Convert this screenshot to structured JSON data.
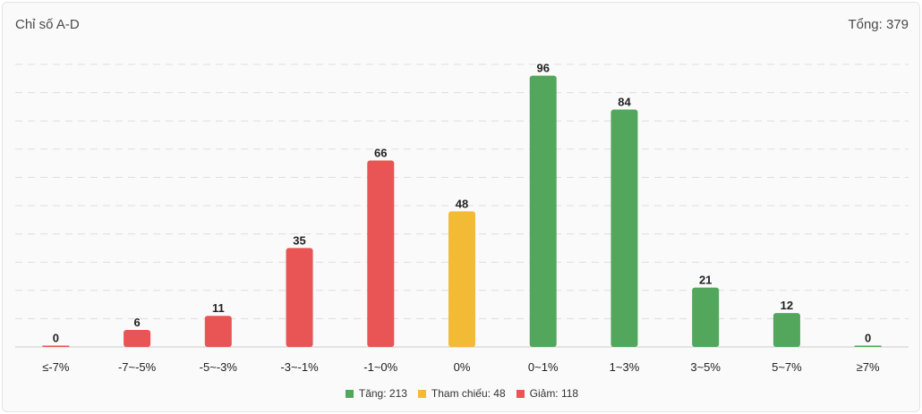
{
  "header": {
    "title": "Chỉ số A-D",
    "total": "Tổng: 379"
  },
  "colors": {
    "up": "#52a75c",
    "ref": "#f3bb35",
    "down": "#e95454",
    "grid": "#dddddd",
    "axis": "#cccccc"
  },
  "legend": [
    {
      "label": "Tăng: 213",
      "color": "#52a75c"
    },
    {
      "label": "Tham chiếu: 48",
      "color": "#f3bb35"
    },
    {
      "label": "Giảm: 118",
      "color": "#e95454"
    }
  ],
  "chart_data": {
    "type": "bar",
    "title": "Chỉ số A-D",
    "categories": [
      "≤-7%",
      "-7~-5%",
      "-5~-3%",
      "-3~-1%",
      "-1~0%",
      "0%",
      "0~1%",
      "1~3%",
      "3~5%",
      "5~7%",
      "≥7%"
    ],
    "values": [
      0,
      6,
      11,
      35,
      66,
      48,
      96,
      84,
      21,
      12,
      0
    ],
    "groups": [
      "down",
      "down",
      "down",
      "down",
      "down",
      "ref",
      "up",
      "up",
      "up",
      "up",
      "up"
    ],
    "ylim": [
      0,
      100
    ],
    "grid": true,
    "legend": "bottom-center"
  }
}
